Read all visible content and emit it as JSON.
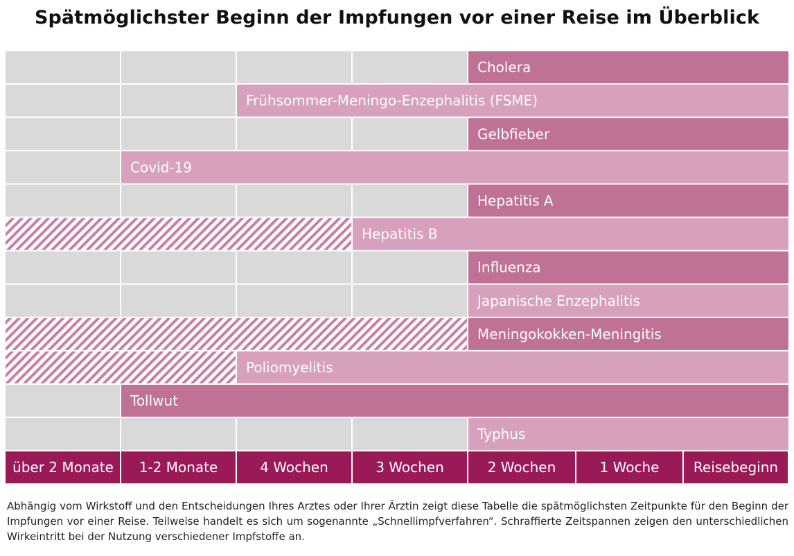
{
  "title": "Spätmöglichster Beginn der Impfungen vor einer Reise im Überblick",
  "chart_data": {
    "type": "bar",
    "orientation": "horizontal",
    "timeline_columns": [
      "über 2 Monate",
      "1-2 Monate",
      "4 Wochen",
      "3 Wochen",
      "2 Wochen",
      "1 Woche",
      "Reisebeginn"
    ],
    "series": [
      {
        "name": "Cholera",
        "start": "2 Wochen",
        "hatched_from": null
      },
      {
        "name": "Frühsommer-Meningo-Enzephalitis (FSME)",
        "start": "4 Wochen",
        "hatched_from": null
      },
      {
        "name": "Gelbfieber",
        "start": "2 Wochen",
        "hatched_from": null
      },
      {
        "name": "Covid-19",
        "start": "1-2 Monate",
        "hatched_from": null
      },
      {
        "name": "Hepatitis A",
        "start": "2 Wochen",
        "hatched_from": null
      },
      {
        "name": "Hepatitis B",
        "start": "3 Wochen",
        "hatched_from": "über 2 Monate"
      },
      {
        "name": "Influenza",
        "start": "2 Wochen",
        "hatched_from": null
      },
      {
        "name": "Japanische Enzephalitis",
        "start": "2 Wochen",
        "hatched_from": null
      },
      {
        "name": "Meningokokken-Meningitis",
        "start": "2 Wochen",
        "hatched_from": "über 2 Monate"
      },
      {
        "name": "Poliomyelitis",
        "start": "4 Wochen",
        "hatched_from": "über 2 Monate"
      },
      {
        "name": "Tollwut",
        "start": "1-2 Monate",
        "hatched_from": null
      },
      {
        "name": "Typhus",
        "start": "2 Wochen",
        "hatched_from": null
      }
    ],
    "colors": {
      "bar_dark": "#c07196",
      "bar_light": "#d7a0bc",
      "empty_cell": "#d9d9d9",
      "axis_bar": "#9a1a58",
      "hatch": "#c97ea3"
    }
  },
  "footnote": "Abhängig vom Wirkstoff  und den Entscheidungen Ihres Arztes oder Ihrer Ärztin zeigt diese Tabelle die spätmöglichsten Zeitpunkte für den Beginn der Impfungen vor einer Reise. Teilweise handelt es sich um sogenannte „Schnellimpfverfahren“. Schraffierte Zeitspannen zeigen den unterschiedlichen Wirkeintritt bei der Nutzung verschiedener Impfstoffe an."
}
